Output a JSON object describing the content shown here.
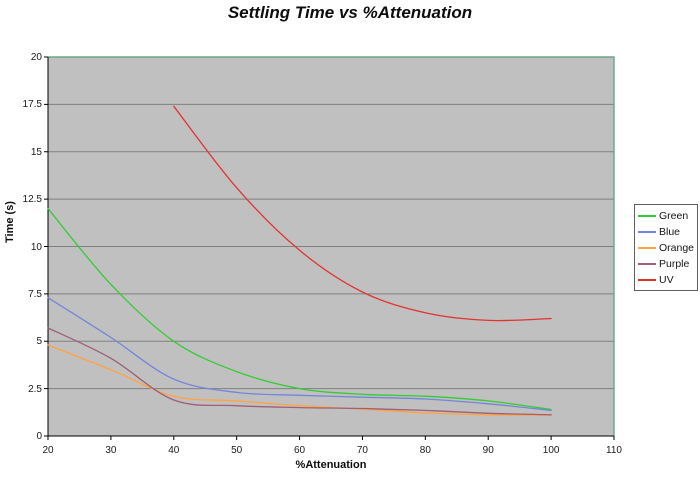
{
  "chart": {
    "title": "Settling Time vs %Attenuation",
    "x_axis_title": "%Attenuation",
    "y_axis_title": "Time (s)",
    "colors": {
      "plot_background": "#C0C0C0",
      "gridline": "#808080",
      "axis": "#000000",
      "plot_border": "#6BA68E",
      "tick_label": "#1A1A1A"
    }
  },
  "chart_data": {
    "type": "line",
    "title": "Settling Time vs %Attenuation",
    "xlabel": "%Attenuation",
    "ylabel": "Time (s)",
    "xlim": [
      20,
      110
    ],
    "ylim": [
      0,
      20
    ],
    "x_ticks": [
      20,
      30,
      40,
      50,
      60,
      70,
      80,
      90,
      100,
      110
    ],
    "y_ticks": [
      0,
      2.5,
      5,
      7.5,
      10,
      12.5,
      15,
      17.5,
      20
    ],
    "grid": "horizontal",
    "legend_position": "right",
    "smooth": true,
    "series": [
      {
        "name": "Green",
        "color": "#33CC33",
        "x": [
          20,
          30,
          40,
          50,
          60,
          70,
          80,
          90,
          100
        ],
        "y": [
          12.0,
          8.0,
          5.0,
          3.4,
          2.5,
          2.2,
          2.1,
          1.85,
          1.4
        ]
      },
      {
        "name": "Blue",
        "color": "#7386D9",
        "x": [
          20,
          30,
          40,
          50,
          60,
          70,
          80,
          90,
          100
        ],
        "y": [
          7.3,
          5.2,
          3.0,
          2.3,
          2.15,
          2.05,
          1.95,
          1.7,
          1.35
        ]
      },
      {
        "name": "Orange",
        "color": "#FFA33F",
        "x": [
          20,
          30,
          40,
          50,
          60,
          70,
          80,
          90,
          100
        ],
        "y": [
          4.8,
          3.5,
          2.1,
          1.85,
          1.6,
          1.42,
          1.22,
          1.12,
          1.1
        ]
      },
      {
        "name": "Purple",
        "color": "#9E5F78",
        "x": [
          20,
          30,
          40,
          50,
          60,
          70,
          80,
          90,
          100
        ],
        "y": [
          5.7,
          4.1,
          1.9,
          1.6,
          1.5,
          1.45,
          1.35,
          1.2,
          1.12
        ]
      },
      {
        "name": "UV",
        "color": "#E23333",
        "x": [
          40,
          50,
          60,
          70,
          80,
          90,
          100
        ],
        "y": [
          17.4,
          13.1,
          9.8,
          7.6,
          6.5,
          6.1,
          6.2
        ]
      }
    ]
  },
  "legend": {
    "items": [
      "Green",
      "Blue",
      "Orange",
      "Purple",
      "UV"
    ]
  }
}
